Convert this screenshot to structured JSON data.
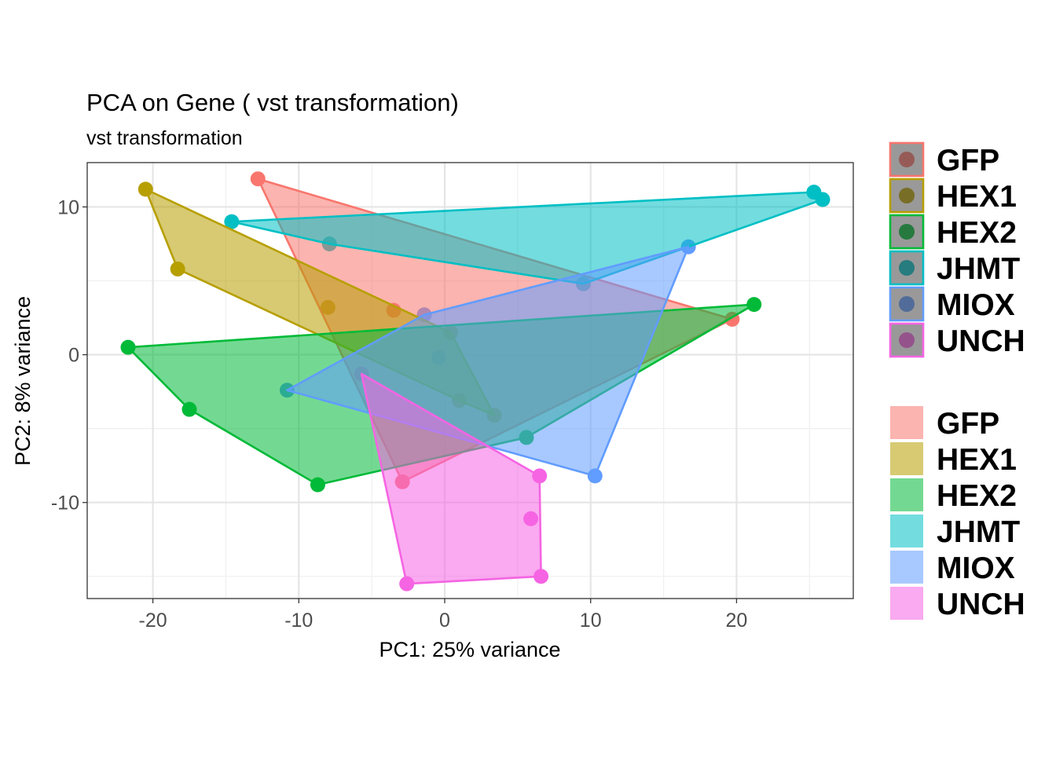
{
  "chart_data": {
    "type": "scatter",
    "title": "PCA on Gene ( vst transformation)",
    "subtitle": "vst transformation",
    "xlabel": "PC1: 25% variance",
    "ylabel": "PC2: 8% variance",
    "xlim": [
      -24.5,
      28
    ],
    "ylim": [
      -16.5,
      13
    ],
    "xticks": [
      -20,
      -10,
      0,
      10,
      20
    ],
    "yticks": [
      -10,
      0,
      10
    ],
    "xtick_labels": [
      "-20",
      "-10",
      "0",
      "10",
      "20"
    ],
    "ytick_labels": [
      "-10",
      "0",
      "10"
    ],
    "grid": true,
    "legend_position": "right",
    "series": [
      {
        "name": "GFP",
        "color": "#F8766D",
        "points": [
          [
            -12.8,
            11.9
          ],
          [
            19.7,
            2.4
          ],
          [
            -2.9,
            -8.6
          ],
          [
            -3.5,
            3.0
          ]
        ]
      },
      {
        "name": "HEX1",
        "color": "#B79F00",
        "points": [
          [
            -20.5,
            11.2
          ],
          [
            -18.3,
            5.8
          ],
          [
            -8.0,
            3.2
          ],
          [
            0.4,
            1.5
          ],
          [
            3.4,
            -4.1
          ],
          [
            1.0,
            -3.1
          ]
        ]
      },
      {
        "name": "HEX2",
        "color": "#00BA38",
        "points": [
          [
            -21.7,
            0.5
          ],
          [
            21.2,
            3.4
          ],
          [
            5.6,
            -5.6
          ],
          [
            -8.7,
            -8.8
          ],
          [
            -17.5,
            -3.7
          ]
        ]
      },
      {
        "name": "JHMT",
        "color": "#00BFC4",
        "points": [
          [
            -14.6,
            9.0
          ],
          [
            -7.9,
            7.5
          ],
          [
            9.5,
            4.8
          ],
          [
            25.3,
            11.0
          ],
          [
            25.9,
            10.5
          ]
        ]
      },
      {
        "name": "MIOX",
        "color": "#619CFF",
        "points": [
          [
            -10.8,
            -2.4
          ],
          [
            -1.4,
            2.7
          ],
          [
            16.7,
            7.3
          ],
          [
            10.3,
            -8.2
          ],
          [
            -0.4,
            -0.2
          ]
        ]
      },
      {
        "name": "UNCH",
        "color": "#F564E3",
        "points": [
          [
            -5.7,
            -1.3
          ],
          [
            6.5,
            -8.2
          ],
          [
            6.6,
            -15.0
          ],
          [
            -2.6,
            -15.5
          ],
          [
            5.9,
            -11.1
          ]
        ]
      }
    ],
    "legend_color": [
      "GFP",
      "HEX1",
      "HEX2",
      "JHMT",
      "MIOX",
      "UNCH"
    ],
    "legend_fill": [
      "GFP",
      "HEX1",
      "HEX2",
      "JHMT",
      "MIOX",
      "UNCH"
    ]
  }
}
